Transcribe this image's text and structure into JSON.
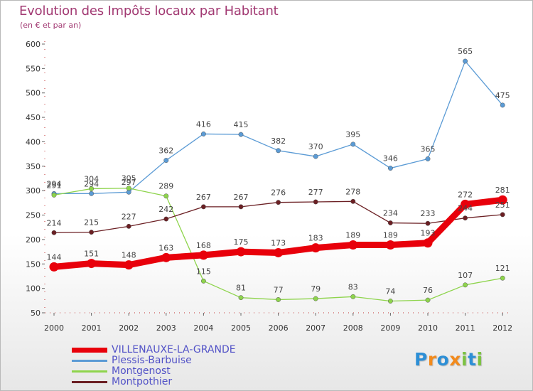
{
  "header": {
    "title": "Evolution des Impôts locaux par Habitant",
    "subtitle": "(en € et par an)"
  },
  "logo": {
    "letters": [
      "P",
      "r",
      "o",
      "x",
      "i",
      "t",
      "i"
    ],
    "colors": [
      "#2d8fd6",
      "#f28a1c",
      "#2d8fd6",
      "#f28a1c",
      "#7cc242",
      "#2d8fd6",
      "#7cc242"
    ]
  },
  "chart_data": {
    "type": "line",
    "title": "Evolution des Impôts locaux par Habitant",
    "subtitle": "(en € et par an)",
    "xlabel": "",
    "ylabel": "",
    "ylim": [
      50,
      600
    ],
    "yticks": [
      50,
      100,
      150,
      200,
      250,
      300,
      350,
      400,
      450,
      500,
      550,
      600
    ],
    "grid": false,
    "legend_position": "bottom-left",
    "x": [
      "2000",
      "2001",
      "2002",
      "2003",
      "2004",
      "2005",
      "2006",
      "2007",
      "2008",
      "2009",
      "2010",
      "2011",
      "2012"
    ],
    "series": [
      {
        "name": "VILLENAUXE-LA-GRANDE",
        "color": "#e8000b",
        "values": [
          144,
          151,
          148,
          163,
          168,
          175,
          173,
          183,
          189,
          189,
          193,
          272,
          281
        ]
      },
      {
        "name": "Plessis-Barbuise",
        "color": "#5b9bd5",
        "values": [
          294,
          294,
          297,
          362,
          416,
          415,
          382,
          370,
          395,
          346,
          365,
          565,
          475
        ]
      },
      {
        "name": "Montgenost",
        "color": "#8ed44c",
        "values": [
          291,
          304,
          305,
          289,
          115,
          81,
          77,
          79,
          83,
          74,
          76,
          107,
          121
        ]
      },
      {
        "name": "Montpothier",
        "color": "#6b1f23",
        "values": [
          214,
          215,
          227,
          242,
          267,
          267,
          276,
          277,
          278,
          234,
          233,
          244,
          251
        ]
      }
    ]
  }
}
